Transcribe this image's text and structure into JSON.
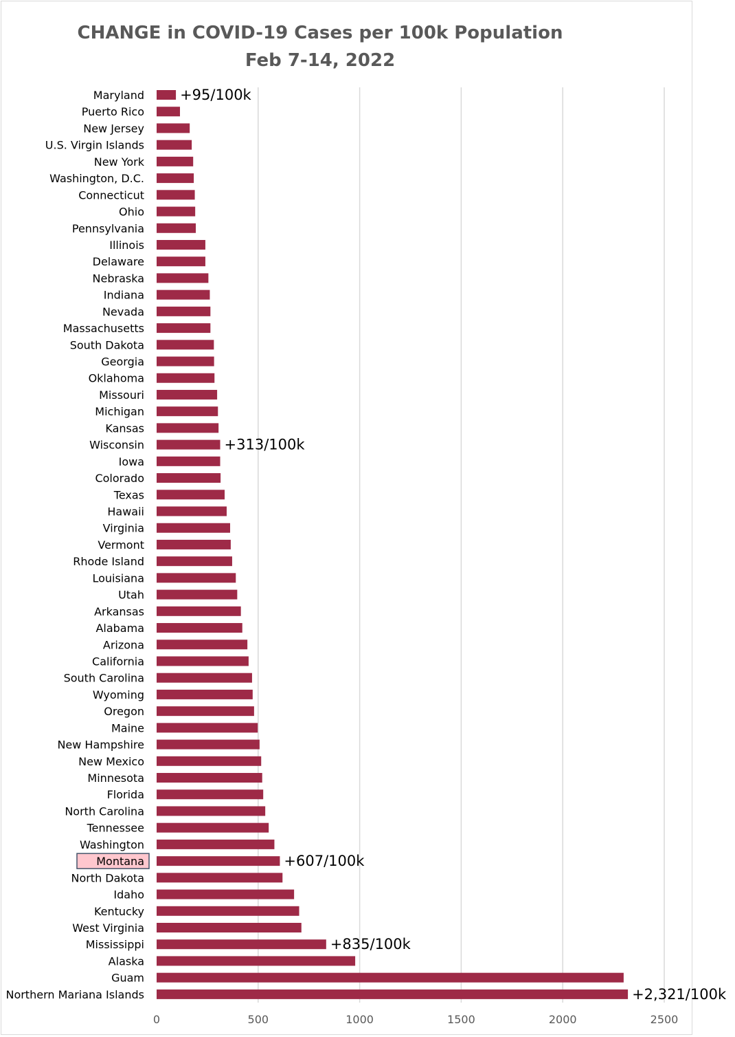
{
  "chart_data": {
    "type": "bar",
    "orientation": "horizontal",
    "title": "CHANGE in COVID-19 Cases per 100k Population",
    "subtitle": "Feb 7-14, 2022",
    "xlabel": "",
    "ylabel": "",
    "xlim": [
      0,
      2500
    ],
    "xticks": [
      0,
      500,
      1000,
      1500,
      2000,
      2500
    ],
    "xtick_labels": [
      "0",
      "500",
      "1000",
      "1500",
      "2000",
      "2500"
    ],
    "grid": true,
    "bar_color": "#9e2a47",
    "highlight_fill": "#ffc7ce",
    "highlight_border": "#44546a",
    "highlight_category": "Montana",
    "categories": [
      "Maryland",
      "Puerto Rico",
      "New Jersey",
      "U.S. Virgin Islands",
      "New York",
      "Washington, D.C.",
      "Connecticut",
      "Ohio",
      "Pennsylvania",
      "Illinois",
      "Delaware",
      "Nebraska",
      "Indiana",
      "Nevada",
      "Massachusetts",
      "South Dakota",
      "Georgia",
      "Oklahoma",
      "Missouri",
      "Michigan",
      "Kansas",
      "Wisconsin",
      "Iowa",
      "Colorado",
      "Texas",
      "Hawaii",
      "Virginia",
      "Vermont",
      "Rhode Island",
      "Louisiana",
      "Utah",
      "Arkansas",
      "Alabama",
      "Arizona",
      "California",
      "South Carolina",
      "Wyoming",
      "Oregon",
      "Maine",
      "New Hampshire",
      "New Mexico",
      "Minnesota",
      "Florida",
      "North Carolina",
      "Tennessee",
      "Washington",
      "Montana",
      "North Dakota",
      "Idaho",
      "Kentucky",
      "West Virginia",
      "Mississippi",
      "Alaska",
      "Guam",
      "Northern Mariana Islands"
    ],
    "values": [
      95,
      115,
      163,
      173,
      180,
      183,
      188,
      190,
      193,
      240,
      240,
      255,
      262,
      265,
      265,
      282,
      283,
      285,
      298,
      302,
      305,
      313,
      313,
      315,
      335,
      345,
      362,
      365,
      372,
      390,
      397,
      415,
      422,
      447,
      453,
      470,
      473,
      480,
      498,
      507,
      515,
      520,
      525,
      535,
      552,
      580,
      607,
      620,
      677,
      702,
      713,
      835,
      978,
      2300,
      2321
    ],
    "annotations": [
      {
        "category": "Maryland",
        "text": "+95/100k"
      },
      {
        "category": "Wisconsin",
        "text": "+313/100k"
      },
      {
        "category": "Montana",
        "text": "+607/100k"
      },
      {
        "category": "Mississippi",
        "text": "+835/100k"
      },
      {
        "category": "Northern Mariana Islands",
        "text": "+2,321/100k"
      }
    ]
  }
}
